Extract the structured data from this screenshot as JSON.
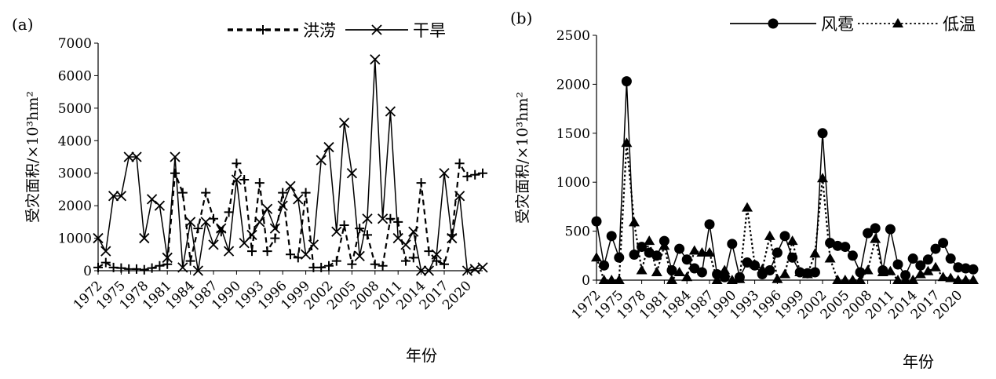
{
  "chart_data": [
    {
      "panel_label": "(a)",
      "type": "line",
      "xlabel": "年份",
      "ylabel": "受灾面积/×10³hm²",
      "ylim": [
        0,
        7000
      ],
      "yticks": [
        0,
        1000,
        2000,
        3000,
        4000,
        5000,
        6000,
        7000
      ],
      "x": [
        1972,
        1973,
        1974,
        1975,
        1976,
        1977,
        1978,
        1979,
        1980,
        1981,
        1982,
        1983,
        1984,
        1985,
        1986,
        1987,
        1988,
        1989,
        1990,
        1991,
        1992,
        1993,
        1994,
        1995,
        1996,
        1997,
        1998,
        1999,
        2000,
        2001,
        2002,
        2003,
        2004,
        2005,
        2006,
        2007,
        2008,
        2009,
        2010,
        2011,
        2012,
        2013,
        2014,
        2015,
        2016,
        2017,
        2018,
        2019,
        2020,
        2021,
        2022
      ],
      "xtick_labels": [
        "1972",
        "1975",
        "1978",
        "1981",
        "1984",
        "1987",
        "1990",
        "1993",
        "1996",
        "1999",
        "2002",
        "2005",
        "2008",
        "2011",
        "2014",
        "2017",
        "2020"
      ],
      "series": [
        {
          "name": "洪涝",
          "style": "dashed",
          "marker": "plus",
          "color": "#000000",
          "values": [
            100,
            250,
            100,
            80,
            50,
            50,
            30,
            80,
            150,
            200,
            3000,
            2400,
            300,
            1300,
            2400,
            1600,
            1200,
            1800,
            3300,
            2800,
            600,
            2700,
            600,
            1000,
            2400,
            500,
            400,
            2400,
            100,
            100,
            150,
            300,
            1400,
            200,
            1300,
            1100,
            200,
            150,
            1600,
            1500,
            300,
            400,
            2700,
            600,
            300,
            200,
            1100,
            3300,
            2900,
            2950,
            3000
          ]
        },
        {
          "name": "干旱",
          "style": "solid",
          "marker": "x",
          "color": "#000000",
          "values": [
            1000,
            600,
            2300,
            2300,
            3500,
            3500,
            1000,
            2200,
            2000,
            400,
            3500,
            100,
            1500,
            0,
            1500,
            800,
            1300,
            600,
            2800,
            850,
            1100,
            1500,
            1900,
            1300,
            2000,
            2600,
            2200,
            500,
            800,
            3400,
            3800,
            1200,
            4550,
            3000,
            450,
            1600,
            6500,
            1600,
            4900,
            1000,
            800,
            1200,
            0,
            0,
            500,
            3000,
            1000,
            2300,
            0,
            50,
            100
          ]
        }
      ],
      "legend_position": "top-right",
      "grid": false
    },
    {
      "panel_label": "(b)",
      "type": "line",
      "xlabel": "年份",
      "ylabel": "受灾面积/×10³hm²",
      "ylim": [
        0,
        2500
      ],
      "yticks": [
        0,
        500,
        1000,
        1500,
        2000,
        2500
      ],
      "x": [
        1972,
        1973,
        1974,
        1975,
        1976,
        1977,
        1978,
        1979,
        1980,
        1981,
        1982,
        1983,
        1984,
        1985,
        1986,
        1987,
        1988,
        1989,
        1990,
        1991,
        1992,
        1993,
        1994,
        1995,
        1996,
        1997,
        1998,
        1999,
        2000,
        2001,
        2002,
        2003,
        2004,
        2005,
        2006,
        2007,
        2008,
        2009,
        2010,
        2011,
        2012,
        2013,
        2014,
        2015,
        2016,
        2017,
        2018,
        2019,
        2020,
        2021,
        2022
      ],
      "xtick_labels": [
        "1972",
        "1975",
        "1978",
        "1981",
        "1984",
        "1987",
        "1990",
        "1993",
        "1996",
        "1999",
        "2002",
        "2005",
        "2008",
        "2011",
        "2014",
        "2017",
        "2020"
      ],
      "series": [
        {
          "name": "风雹",
          "style": "solid",
          "marker": "circle",
          "color": "#000000",
          "values": [
            600,
            150,
            450,
            230,
            2030,
            260,
            340,
            280,
            250,
            400,
            100,
            320,
            210,
            120,
            80,
            570,
            60,
            30,
            370,
            30,
            180,
            150,
            60,
            100,
            280,
            450,
            230,
            80,
            70,
            80,
            1500,
            380,
            350,
            340,
            250,
            80,
            480,
            530,
            100,
            520,
            160,
            50,
            220,
            150,
            210,
            320,
            380,
            220,
            130,
            120,
            110
          ]
        },
        {
          "name": "低温",
          "style": "dotted",
          "marker": "triangle",
          "color": "#000000",
          "values": [
            230,
            0,
            0,
            0,
            1400,
            590,
            100,
            400,
            80,
            350,
            0,
            80,
            30,
            300,
            280,
            280,
            0,
            100,
            0,
            10,
            740,
            160,
            110,
            450,
            10,
            60,
            400,
            80,
            60,
            270,
            1040,
            220,
            0,
            0,
            0,
            0,
            100,
            420,
            80,
            90,
            0,
            0,
            0,
            60,
            90,
            130,
            30,
            20,
            0,
            0,
            0
          ]
        }
      ],
      "legend_position": "top-right",
      "grid": false
    }
  ]
}
